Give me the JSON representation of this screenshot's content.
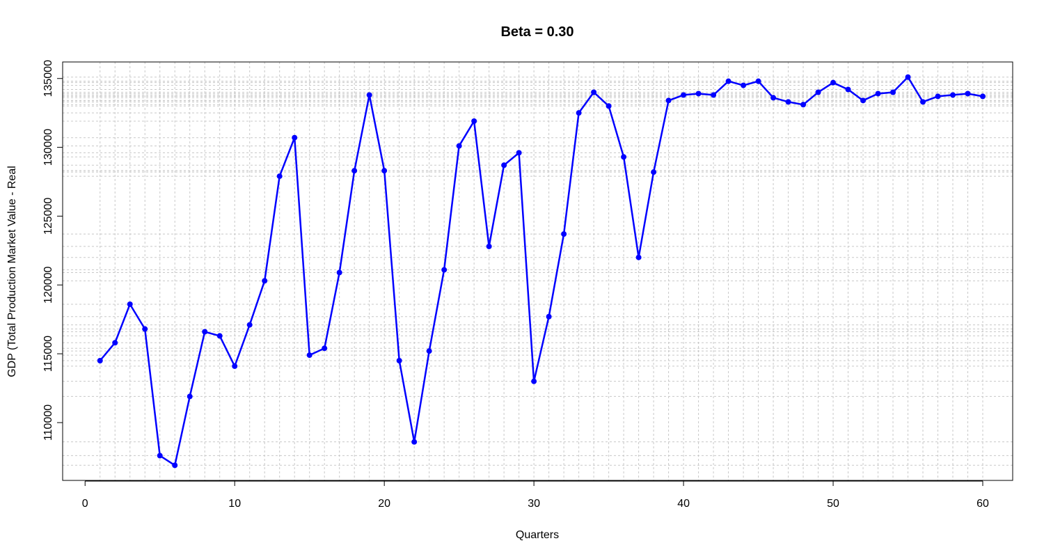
{
  "chart_data": {
    "type": "line",
    "title": "Beta = 0.30",
    "xlabel": "Quarters",
    "ylabel": "GDP (Total Production Market Value - Real",
    "xlim": [
      -1.5,
      62
    ],
    "ylim": [
      105800,
      136200
    ],
    "xticks": [
      0,
      10,
      20,
      30,
      40,
      50,
      60
    ],
    "yticks": [
      110000,
      115000,
      120000,
      125000,
      130000,
      135000
    ],
    "grid": true,
    "legend": "none",
    "series": [
      {
        "color": "#0000ff",
        "x": [
          1,
          2,
          3,
          4,
          5,
          6,
          7,
          8,
          9,
          10,
          11,
          12,
          13,
          14,
          15,
          16,
          17,
          18,
          19,
          20,
          21,
          22,
          23,
          24,
          25,
          26,
          27,
          28,
          29,
          30,
          31,
          32,
          33,
          34,
          35,
          36,
          37,
          38,
          39,
          40,
          41,
          42,
          43,
          44,
          45,
          46,
          47,
          48,
          49,
          50,
          51,
          52,
          53,
          54,
          55,
          56,
          57,
          58,
          59,
          60
        ],
        "y": [
          114500,
          115800,
          118600,
          116800,
          107600,
          106900,
          111900,
          116600,
          116300,
          114100,
          117100,
          120300,
          127900,
          130700,
          114900,
          115400,
          120900,
          128300,
          133800,
          128300,
          114500,
          108600,
          115200,
          121100,
          130100,
          131900,
          122800,
          128700,
          129600,
          113000,
          117700,
          123700,
          132500,
          134000,
          133000,
          129300,
          122000,
          128200,
          133400,
          133800,
          133900,
          133800,
          134800,
          134500,
          134800,
          133600,
          133300,
          133100,
          134000,
          134700,
          134200,
          133400,
          133900,
          134000,
          135100,
          133300,
          133700,
          133800,
          133900,
          133700
        ]
      }
    ]
  }
}
